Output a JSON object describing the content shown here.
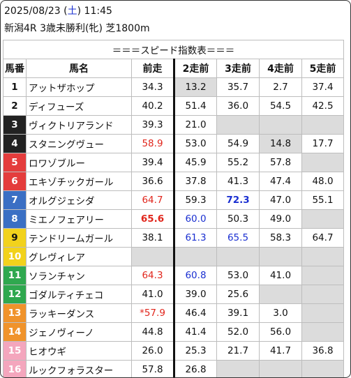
{
  "header": {
    "date": "2025/08/23",
    "weekday": "土",
    "time": "11:45",
    "race": "新潟4R 3歳未勝利(牝) 芝1800m"
  },
  "table": {
    "title": "＝＝＝スピード指数表＝＝＝",
    "columns": [
      "馬番",
      "馬名",
      "前走",
      "2走前",
      "3走前",
      "4走前",
      "5走前"
    ],
    "rows": [
      {
        "no": "1",
        "name": "アットザホップ",
        "bg": "#ffffff",
        "fg": "#111111",
        "v": [
          "34.3",
          "13.2",
          "35.7",
          "2.7",
          "37.4"
        ],
        "gray": [
          false,
          true,
          false,
          false,
          false
        ],
        "style": [
          "",
          "",
          "",
          "",
          ""
        ]
      },
      {
        "no": "2",
        "name": "ディフューズ",
        "bg": "#ffffff",
        "fg": "#111111",
        "v": [
          "40.2",
          "51.4",
          "36.0",
          "54.5",
          "42.5"
        ],
        "gray": [
          false,
          false,
          false,
          false,
          false
        ],
        "style": [
          "",
          "",
          "",
          "",
          ""
        ]
      },
      {
        "no": "3",
        "name": "ヴィクトリアランド",
        "bg": "#222222",
        "fg": "#ffffff",
        "v": [
          "39.3",
          "21.0",
          "",
          "",
          ""
        ],
        "gray": [
          false,
          false,
          true,
          true,
          true
        ],
        "style": [
          "",
          "",
          "",
          "",
          ""
        ]
      },
      {
        "no": "4",
        "name": "スタニングヴュー",
        "bg": "#222222",
        "fg": "#ffffff",
        "v": [
          "58.9",
          "53.0",
          "54.9",
          "14.8",
          "17.7"
        ],
        "gray": [
          false,
          false,
          false,
          true,
          false
        ],
        "style": [
          "red",
          "",
          "",
          "",
          ""
        ]
      },
      {
        "no": "5",
        "name": "ロワゾブルー",
        "bg": "#e43c3c",
        "fg": "#ffffff",
        "v": [
          "39.4",
          "45.9",
          "55.2",
          "57.8",
          ""
        ],
        "gray": [
          false,
          false,
          false,
          false,
          true
        ],
        "style": [
          "",
          "",
          "",
          "",
          ""
        ]
      },
      {
        "no": "6",
        "name": "エキゾチックガール",
        "bg": "#e43c3c",
        "fg": "#ffffff",
        "v": [
          "36.6",
          "37.8",
          "41.3",
          "47.4",
          "48.0"
        ],
        "gray": [
          false,
          false,
          false,
          false,
          false
        ],
        "style": [
          "",
          "",
          "",
          "",
          ""
        ]
      },
      {
        "no": "7",
        "name": "オルグジェシダ",
        "bg": "#3a6fc4",
        "fg": "#ffffff",
        "v": [
          "64.7",
          "59.3",
          "72.3",
          "47.0",
          "55.1"
        ],
        "gray": [
          false,
          false,
          false,
          false,
          false
        ],
        "style": [
          "red",
          "",
          "blb",
          "",
          ""
        ]
      },
      {
        "no": "8",
        "name": "ミエノフェアリー",
        "bg": "#3a6fc4",
        "fg": "#ffffff",
        "v": [
          "65.6",
          "60.0",
          "50.3",
          "49.0",
          ""
        ],
        "gray": [
          false,
          false,
          false,
          false,
          true
        ],
        "style": [
          "redb",
          "bl",
          "",
          "",
          ""
        ]
      },
      {
        "no": "9",
        "name": "テンドリームガール",
        "bg": "#f2d21c",
        "fg": "#111111",
        "v": [
          "38.1",
          "61.3",
          "65.5",
          "58.3",
          "64.7"
        ],
        "gray": [
          false,
          false,
          false,
          false,
          false
        ],
        "style": [
          "",
          "bl",
          "bl",
          "",
          ""
        ]
      },
      {
        "no": "10",
        "name": "グレヴィレア",
        "bg": "#f2d21c",
        "fg": "#ffffff",
        "v": [
          "",
          "",
          "",
          "",
          ""
        ],
        "gray": [
          true,
          true,
          true,
          true,
          true
        ],
        "style": [
          "",
          "",
          "",
          "",
          ""
        ]
      },
      {
        "no": "11",
        "name": "ソランチャン",
        "bg": "#2fa84f",
        "fg": "#ffffff",
        "v": [
          "64.3",
          "60.8",
          "53.0",
          "41.0",
          ""
        ],
        "gray": [
          false,
          false,
          false,
          false,
          true
        ],
        "style": [
          "red",
          "bl",
          "",
          "",
          ""
        ]
      },
      {
        "no": "12",
        "name": "ゴダルティチェコ",
        "bg": "#2fa84f",
        "fg": "#ffffff",
        "v": [
          "41.0",
          "39.0",
          "25.6",
          "",
          ""
        ],
        "gray": [
          false,
          false,
          false,
          true,
          true
        ],
        "style": [
          "",
          "",
          "",
          "",
          ""
        ]
      },
      {
        "no": "13",
        "name": "ラッキーダンス",
        "bg": "#f0932b",
        "fg": "#ffffff",
        "v": [
          "*57.9",
          "46.4",
          "39.1",
          "3.0",
          ""
        ],
        "gray": [
          false,
          false,
          false,
          false,
          true
        ],
        "style": [
          "red",
          "",
          "",
          "",
          ""
        ]
      },
      {
        "no": "14",
        "name": "ジェノヴィーノ",
        "bg": "#f0932b",
        "fg": "#ffffff",
        "v": [
          "44.8",
          "41.4",
          "52.0",
          "56.0",
          ""
        ],
        "gray": [
          false,
          false,
          false,
          false,
          true
        ],
        "style": [
          "",
          "",
          "",
          "",
          ""
        ]
      },
      {
        "no": "15",
        "name": "ヒオウギ",
        "bg": "#f4a6bd",
        "fg": "#ffffff",
        "v": [
          "26.0",
          "25.3",
          "21.7",
          "41.7",
          "36.8"
        ],
        "gray": [
          false,
          false,
          false,
          false,
          false
        ],
        "style": [
          "",
          "",
          "",
          "",
          ""
        ]
      },
      {
        "no": "16",
        "name": "ルックフォラスター",
        "bg": "#f4a6bd",
        "fg": "#ffffff",
        "v": [
          "57.8",
          "26.8",
          "",
          "",
          ""
        ],
        "gray": [
          false,
          false,
          true,
          true,
          true
        ],
        "style": [
          "",
          "",
          "",
          "",
          ""
        ]
      }
    ]
  }
}
